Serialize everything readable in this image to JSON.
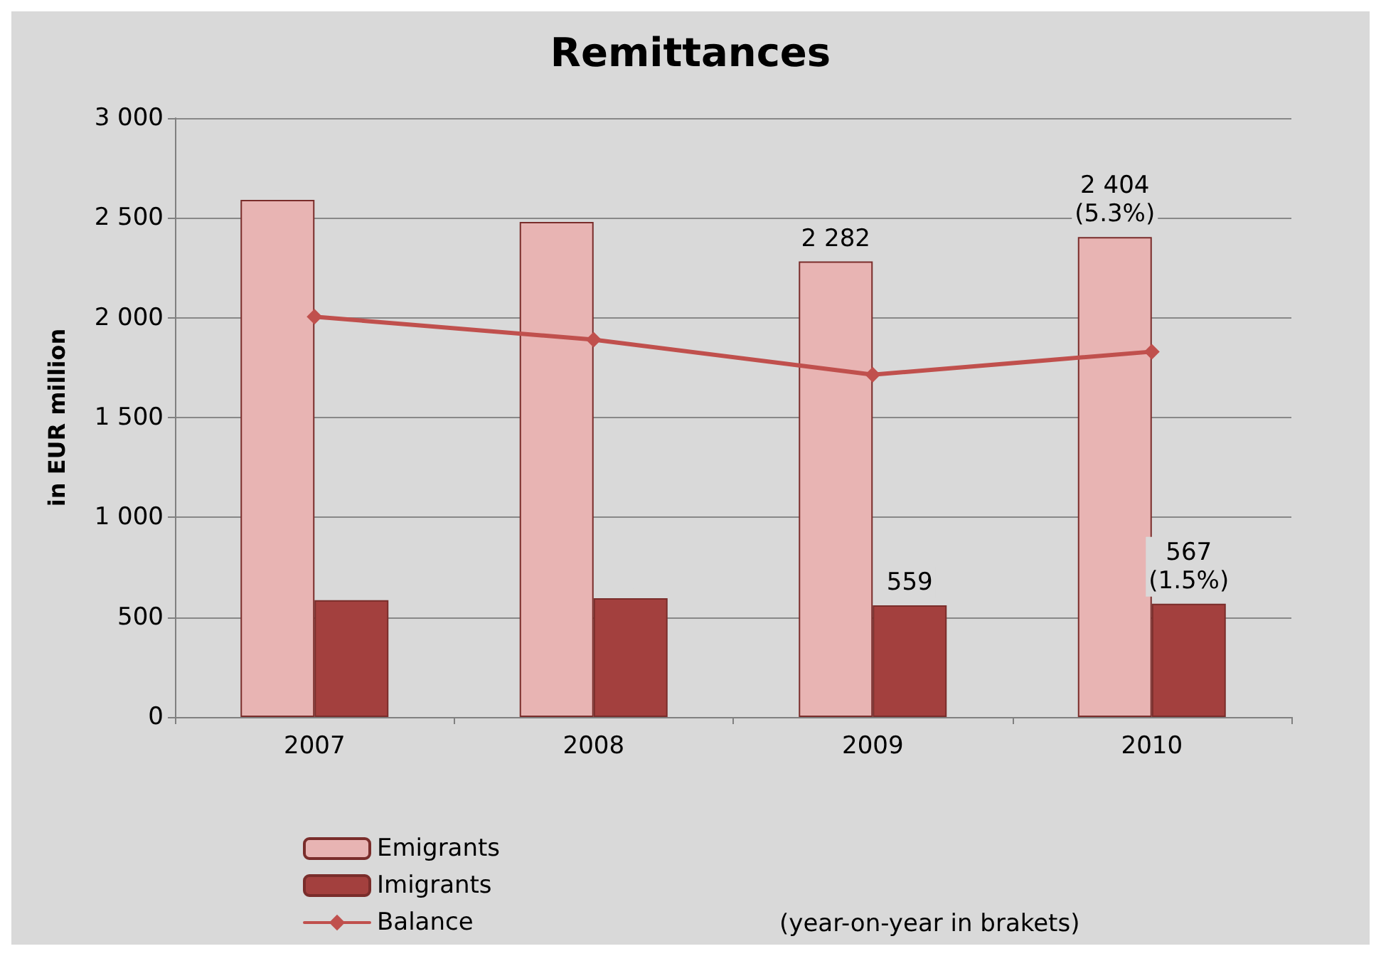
{
  "chart_data": {
    "type": "bar",
    "title": "Remittances",
    "ylabel": "in EUR million",
    "categories": [
      "2007",
      "2008",
      "2009",
      "2010"
    ],
    "series": [
      {
        "name": "Emigrants",
        "color": "#e8b4b3",
        "values": [
          2590,
          2480,
          2282,
          2404
        ],
        "value_labels": [
          null,
          null,
          "2 282",
          "2 404\n(5.3%)"
        ]
      },
      {
        "name": "Imigrants",
        "color": "#a3403e",
        "values": [
          585,
          595,
          559,
          567
        ],
        "value_labels": [
          null,
          null,
          "559",
          "567\n(1.5%)"
        ]
      },
      {
        "name": "Balance",
        "type": "line",
        "color": "#c0504d",
        "values": [
          2005,
          1890,
          1715,
          1830
        ]
      }
    ],
    "ylim": [
      0,
      3000
    ],
    "yticks": [
      {
        "value": 0,
        "label": "0"
      },
      {
        "value": 500,
        "label": "500"
      },
      {
        "value": 1000,
        "label": "1 000"
      },
      {
        "value": 1500,
        "label": "1 500"
      },
      {
        "value": 2000,
        "label": "2 000"
      },
      {
        "value": 2500,
        "label": "2 500"
      },
      {
        "value": 3000,
        "label": "3 000"
      }
    ],
    "grid": "y",
    "legend": "bottom left",
    "marker": "diamond",
    "line_style": "solid",
    "annotations": [
      "(year-on-year in brakets)"
    ]
  }
}
